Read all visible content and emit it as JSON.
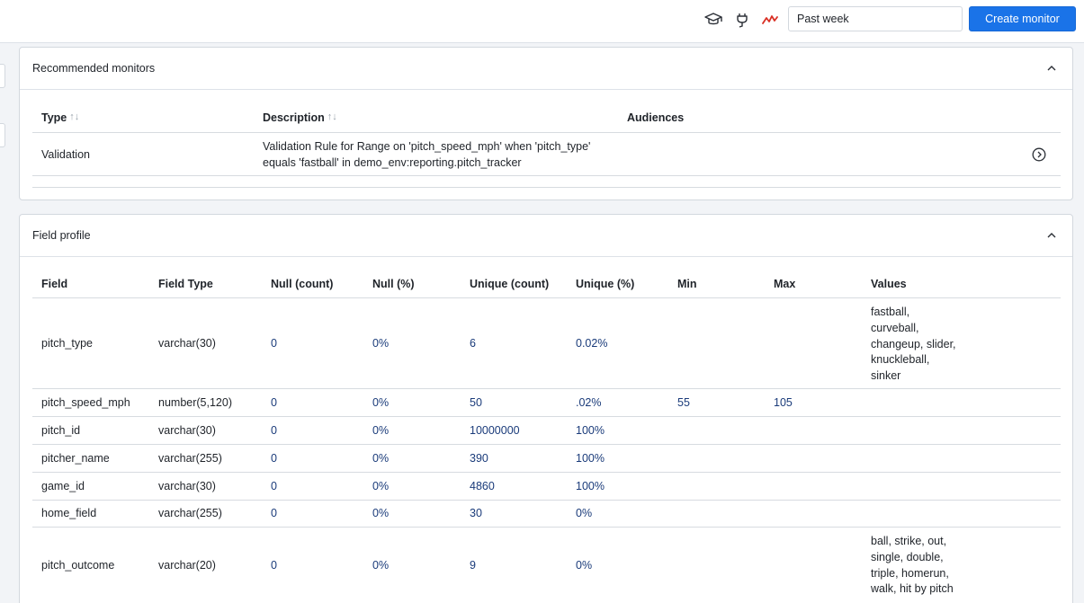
{
  "topbar": {
    "time_range": "Past week",
    "create_button": "Create monitor",
    "icons": [
      "graduation-cap-icon",
      "plug-icon",
      "anomaly-icon"
    ],
    "accent": "#1a73e8",
    "alert_color": "#d93025"
  },
  "recommended": {
    "title": "Recommended monitors",
    "columns": {
      "type": "Type",
      "description": "Description",
      "audiences": "Audiences"
    },
    "rows": [
      {
        "type": "Validation",
        "description_line1": "Validation Rule for Range on 'pitch_speed_mph' when 'pitch_type'",
        "description_line2": "equals 'fastball' in demo_env:reporting.pitch_tracker",
        "audiences": ""
      }
    ]
  },
  "field_profile": {
    "title": "Field profile",
    "columns": {
      "field": "Field",
      "field_type": "Field Type",
      "null_count": "Null (count)",
      "null_pct": "Null (%)",
      "unique_count": "Unique (count)",
      "unique_pct": "Unique (%)",
      "min": "Min",
      "max": "Max",
      "values": "Values"
    },
    "rows": [
      {
        "field": "pitch_type",
        "field_type": "varchar(30)",
        "null_count": "0",
        "null_pct": "0%",
        "unique_count": "6",
        "unique_pct": "0.02%",
        "min": "",
        "max": "",
        "values": [
          "fastball,",
          "curveball,",
          "changeup, slider,",
          "knuckleball,",
          "sinker"
        ]
      },
      {
        "field": "pitch_speed_mph",
        "field_type": "number(5,120)",
        "null_count": "0",
        "null_pct": "0%",
        "unique_count": "50",
        "unique_pct": ".02%",
        "min": "55",
        "max": "105",
        "values": []
      },
      {
        "field": "pitch_id",
        "field_type": "varchar(30)",
        "null_count": "0",
        "null_pct": "0%",
        "unique_count": "10000000",
        "unique_pct": "100%",
        "min": "",
        "max": "",
        "values": []
      },
      {
        "field": "pitcher_name",
        "field_type": "varchar(255)",
        "null_count": "0",
        "null_pct": "0%",
        "unique_count": "390",
        "unique_pct": "100%",
        "min": "",
        "max": "",
        "values": []
      },
      {
        "field": "game_id",
        "field_type": "varchar(30)",
        "null_count": "0",
        "null_pct": "0%",
        "unique_count": "4860",
        "unique_pct": "100%",
        "min": "",
        "max": "",
        "values": []
      },
      {
        "field": "home_field",
        "field_type": "varchar(255)",
        "null_count": "0",
        "null_pct": "0%",
        "unique_count": "30",
        "unique_pct": "0%",
        "min": "",
        "max": "",
        "values": []
      },
      {
        "field": "pitch_outcome",
        "field_type": "varchar(20)",
        "null_count": "0",
        "null_pct": "0%",
        "unique_count": "9",
        "unique_pct": "0%",
        "min": "",
        "max": "",
        "values": [
          "ball, strike, out,",
          "single, double,",
          "triple, homerun,",
          "walk, hit by pitch"
        ]
      }
    ]
  }
}
